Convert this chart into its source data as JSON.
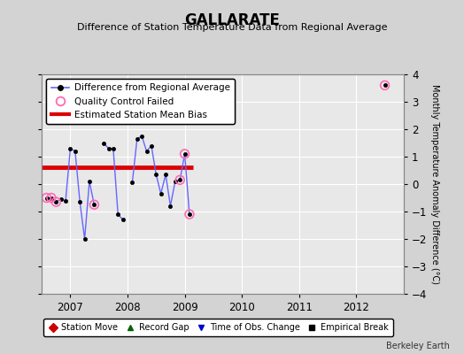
{
  "title": "GALLARATE",
  "subtitle": "Difference of Station Temperature Data from Regional Average",
  "ylabel_right": "Monthly Temperature Anomaly Difference (°C)",
  "credit": "Berkeley Earth",
  "xlim": [
    2006.5,
    2012.83
  ],
  "ylim": [
    -4,
    4
  ],
  "yticks": [
    -4,
    -3,
    -2,
    -1,
    0,
    1,
    2,
    3,
    4
  ],
  "xticks": [
    2007,
    2008,
    2009,
    2010,
    2011,
    2012
  ],
  "bg_color": "#d3d3d3",
  "plot_bg_color": "#e8e8e8",
  "grid_color": "#ffffff",
  "line_color": "#6666ff",
  "line_marker_color": "#000000",
  "qc_color": "#ff69b4",
  "bias_color": "#dd0000",
  "segments": [
    {
      "x": [
        2006.583,
        2006.667,
        2006.75,
        2006.833,
        2006.917,
        2007.0,
        2007.083,
        2007.167,
        2007.25,
        2007.333,
        2007.417
      ],
      "y": [
        -0.5,
        -0.5,
        -0.65,
        -0.55,
        -0.6,
        1.3,
        1.2,
        -0.65,
        -2.0,
        0.1,
        -0.75
      ]
    },
    {
      "x": [
        2007.583,
        2007.667,
        2007.75,
        2007.833,
        2007.917
      ],
      "y": [
        1.5,
        1.3,
        1.3,
        -1.1,
        -1.3
      ]
    },
    {
      "x": [
        2008.083,
        2008.167,
        2008.25,
        2008.333,
        2008.417,
        2008.5,
        2008.583,
        2008.667,
        2008.75,
        2008.833,
        2008.917,
        2009.0,
        2009.083
      ],
      "y": [
        0.05,
        1.65,
        1.75,
        1.2,
        1.4,
        0.35,
        -0.35,
        0.35,
        -0.8,
        0.1,
        0.15,
        1.1,
        -1.1
      ]
    },
    {
      "x": [
        2012.5
      ],
      "y": [
        3.6
      ]
    }
  ],
  "qc_x": [
    2006.583,
    2006.667,
    2006.75,
    2007.417,
    2008.917,
    2009.0,
    2009.083,
    2012.5
  ],
  "qc_y": [
    -0.5,
    -0.5,
    -0.65,
    -0.75,
    0.15,
    1.1,
    -1.1,
    3.6
  ],
  "bias_x_start": 2006.5,
  "bias_x_end": 2009.15,
  "bias_y": 0.6,
  "legend1_entries": [
    {
      "label": "Difference from Regional Average",
      "color": "#6666ff",
      "type": "line"
    },
    {
      "label": "Quality Control Failed",
      "color": "#ff69b4",
      "type": "circle"
    },
    {
      "label": "Estimated Station Mean Bias",
      "color": "#dd0000",
      "type": "line"
    }
  ],
  "legend2_entries": [
    {
      "label": "Station Move",
      "color": "#cc0000",
      "marker": "D"
    },
    {
      "label": "Record Gap",
      "color": "#006400",
      "marker": "^"
    },
    {
      "label": "Time of Obs. Change",
      "color": "#0000cc",
      "marker": "v"
    },
    {
      "label": "Empirical Break",
      "color": "#000000",
      "marker": "s"
    }
  ]
}
